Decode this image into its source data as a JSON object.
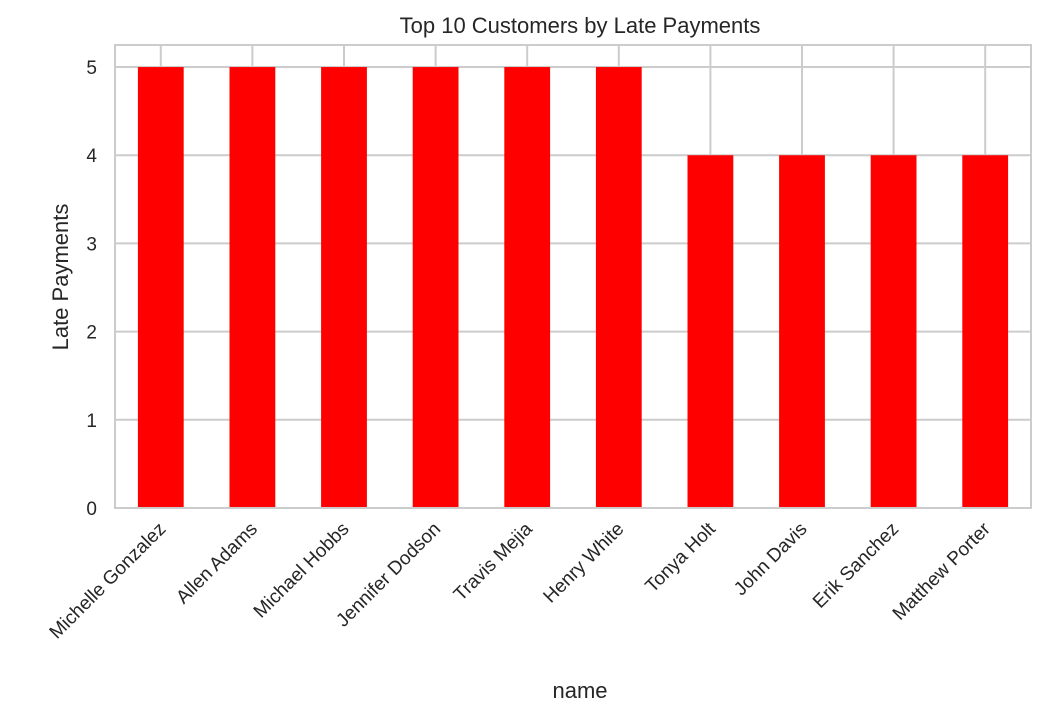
{
  "chart_data": {
    "type": "bar",
    "title": "Top 10 Customers by Late Payments",
    "xlabel": "name",
    "ylabel": "Late Payments",
    "categories": [
      "Michelle Gonzalez",
      "Allen Adams",
      "Michael Hobbs",
      "Jennifer Dodson",
      "Travis Mejia",
      "Henry White",
      "Tonya Holt",
      "John Davis",
      "Erik Sanchez",
      "Matthew Porter"
    ],
    "values": [
      5,
      5,
      5,
      5,
      5,
      5,
      4,
      4,
      4,
      4
    ],
    "ylim": [
      0,
      5.25
    ],
    "yticks": [
      "0",
      "1",
      "2",
      "3",
      "4",
      "5"
    ],
    "grid": true,
    "legend": "none",
    "colors": {
      "bar": "#ff0000",
      "grid": "#cccccc",
      "axes_border": "#cccccc",
      "text": "#262626",
      "background": "#ffffff"
    }
  }
}
